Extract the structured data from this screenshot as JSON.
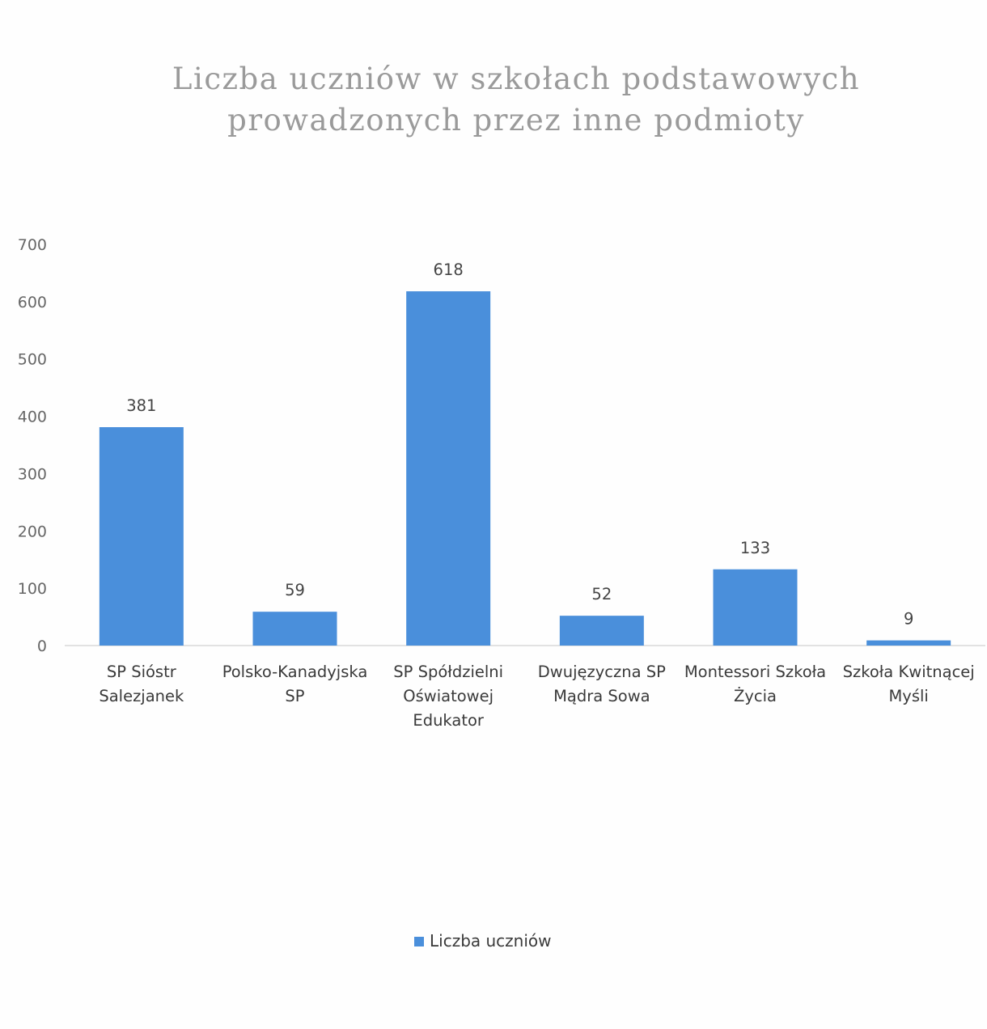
{
  "chart_data": {
    "type": "bar",
    "title": [
      "Liczba uczniów w szkołach podstawowych",
      "prowadzonych przez inne podmioty"
    ],
    "categories": [
      [
        "SP Sióstr",
        "Salezjanek"
      ],
      [
        "Polsko-Kanadyjska",
        "SP"
      ],
      [
        "SP Spółdzielni",
        "Oświatowej",
        "Edukator"
      ],
      [
        "Dwujęzyczna SP",
        "Mądra Sowa"
      ],
      [
        "Montessori Szkoła",
        "Życia"
      ],
      [
        "Szkoła Kwitnącej",
        "Myśli"
      ]
    ],
    "series": [
      {
        "name": "Liczba uczniów",
        "values": [
          381,
          59,
          618,
          52,
          133,
          9
        ]
      }
    ],
    "data_labels": [
      "381",
      "59",
      "618",
      "52",
      "133",
      "9"
    ],
    "yticks": [
      "0",
      "100",
      "200",
      "300",
      "400",
      "500",
      "600",
      "700"
    ],
    "ylim": [
      0,
      700
    ],
    "grid": false,
    "legend_position": "bottom",
    "colors": {
      "bar": "#4a8fdb",
      "axis": "#d9d9d9"
    }
  }
}
